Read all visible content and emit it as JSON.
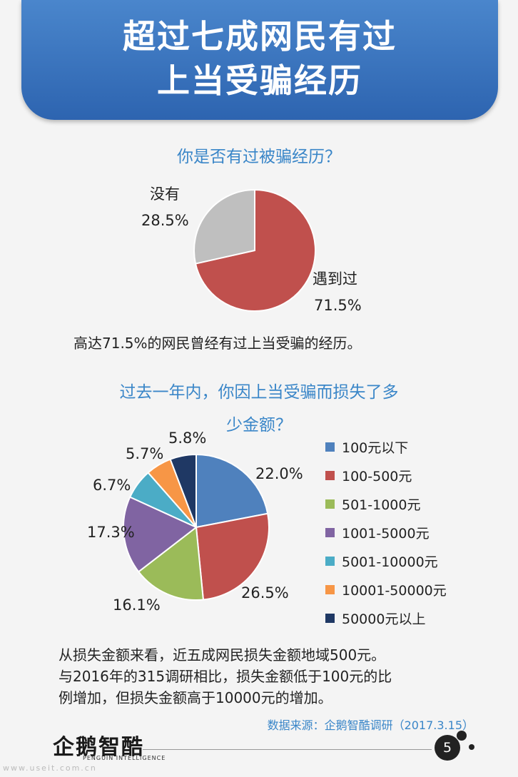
{
  "header": {
    "title_line1": "超过七成网民有过",
    "title_line2": "上当受骗经历"
  },
  "chart_data": [
    {
      "type": "pie",
      "title": "你是否有过被骗经历？",
      "slices": [
        {
          "label": "遇到过",
          "value": 71.5,
          "text": "71.5%",
          "color": "#c0504d"
        },
        {
          "label": "没有",
          "value": 28.5,
          "text": "28.5%",
          "color": "#bfbfbf"
        }
      ]
    },
    {
      "type": "pie",
      "title_line1": "过去一年内，你因上当受骗而损失了多",
      "title_line2": "少金额？",
      "legend_position": "right",
      "slices": [
        {
          "label": "100元以下",
          "value": 22.0,
          "text": "22.0%",
          "color": "#4f81bd"
        },
        {
          "label": "100-500元",
          "value": 26.5,
          "text": "26.5%",
          "color": "#c0504d"
        },
        {
          "label": "501-1000元",
          "value": 16.1,
          "text": "16.1%",
          "color": "#9bbb59"
        },
        {
          "label": "1001-5000元",
          "value": 17.3,
          "text": "17.3%",
          "color": "#8064a2"
        },
        {
          "label": "5001-10000元",
          "value": 6.7,
          "text": "6.7%",
          "color": "#4bacc6"
        },
        {
          "label": "10001-50000元",
          "value": 5.7,
          "text": "5.7%",
          "color": "#f79646"
        },
        {
          "label": "50000元以上",
          "value": 5.8,
          "text": "5.8%",
          "color": "#1f3864"
        }
      ]
    }
  ],
  "text1": "高达71.5%的网民曾经有过上当受骗的经历。",
  "text2": [
    "从损失金额来看，近五成网民损失金额地域500元。",
    "与2016年的315调研相比，损失金额低于100元的比",
    "例增加，但损失金额高于10000元的增加。"
  ],
  "source": "数据来源：企鹅智酷调研（2017.3.15）",
  "footer": {
    "logo": "企鹅智酷",
    "logo_sub": "PENGUIN INTELLIGENCE",
    "page": "5",
    "watermark": "www.useit.com.cn"
  }
}
